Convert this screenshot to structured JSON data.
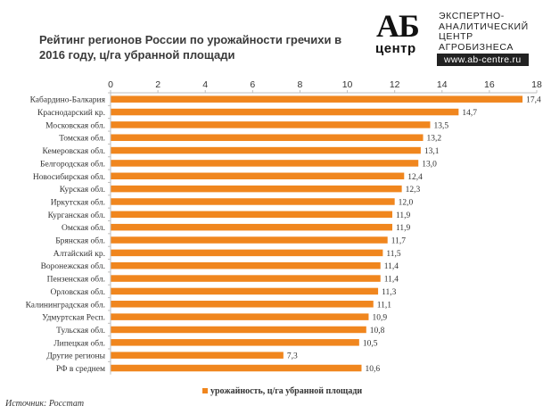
{
  "logo": {
    "big": "АБ",
    "small": "центр",
    "line1": "ЭКСПЕРТНО-",
    "line2": "АНАЛИТИЧЕСКИЙ",
    "line3": "ЦЕНТР",
    "line4": "АГРОБИЗНЕСА",
    "url": "www.ab-centre.ru"
  },
  "source": "Источник: Росстат",
  "chart_data": {
    "type": "bar",
    "orientation": "horizontal",
    "title": "Рейтинг регионов России по урожайности гречихи в 2016 году, ц/га убранной площади",
    "categories": [
      "Кабардино-Балкария",
      "Краснодарский кр.",
      "Московская обл.",
      "Томская обл.",
      "Кемеровская обл.",
      "Белгородская обл.",
      "Новосибирская обл.",
      "Курская обл.",
      "Иркутская обл.",
      "Курганская обл.",
      "Омская обл.",
      "Брянская обл.",
      "Алтайский кр.",
      "Воронежская обл.",
      "Пензенская обл.",
      "Орловская обл.",
      "Калининградская обл.",
      "Удмуртская Респ.",
      "Тульская обл.",
      "Липецкая обл.",
      "Другие регионы",
      "РФ в среднем"
    ],
    "series": [
      {
        "name": "урожайность, ц/га убранной площади",
        "values": [
          17.4,
          14.7,
          13.5,
          13.2,
          13.1,
          13.0,
          12.4,
          12.3,
          12.0,
          11.9,
          11.9,
          11.7,
          11.5,
          11.4,
          11.4,
          11.3,
          11.1,
          10.9,
          10.8,
          10.5,
          7.3,
          10.6
        ],
        "labels": [
          "17,4",
          "14,7",
          "13,5",
          "13,2",
          "13,1",
          "13,0",
          "12,4",
          "12,3",
          "12,0",
          "11,9",
          "11,9",
          "11,7",
          "11,5",
          "11,4",
          "11,4",
          "11,3",
          "11,1",
          "10,9",
          "10,8",
          "10,5",
          "7,3",
          "10,6"
        ]
      }
    ],
    "x_ticks": [
      "0",
      "2",
      "4",
      "6",
      "8",
      "10",
      "12",
      "14",
      "16",
      "18"
    ],
    "xlim": [
      0,
      18
    ],
    "x_axis_position": "top",
    "grid": false,
    "legend_position": "bottom",
    "colors": {
      "bar": "#F0861E",
      "text": "#333333",
      "axis": "#bfbfbf"
    }
  }
}
